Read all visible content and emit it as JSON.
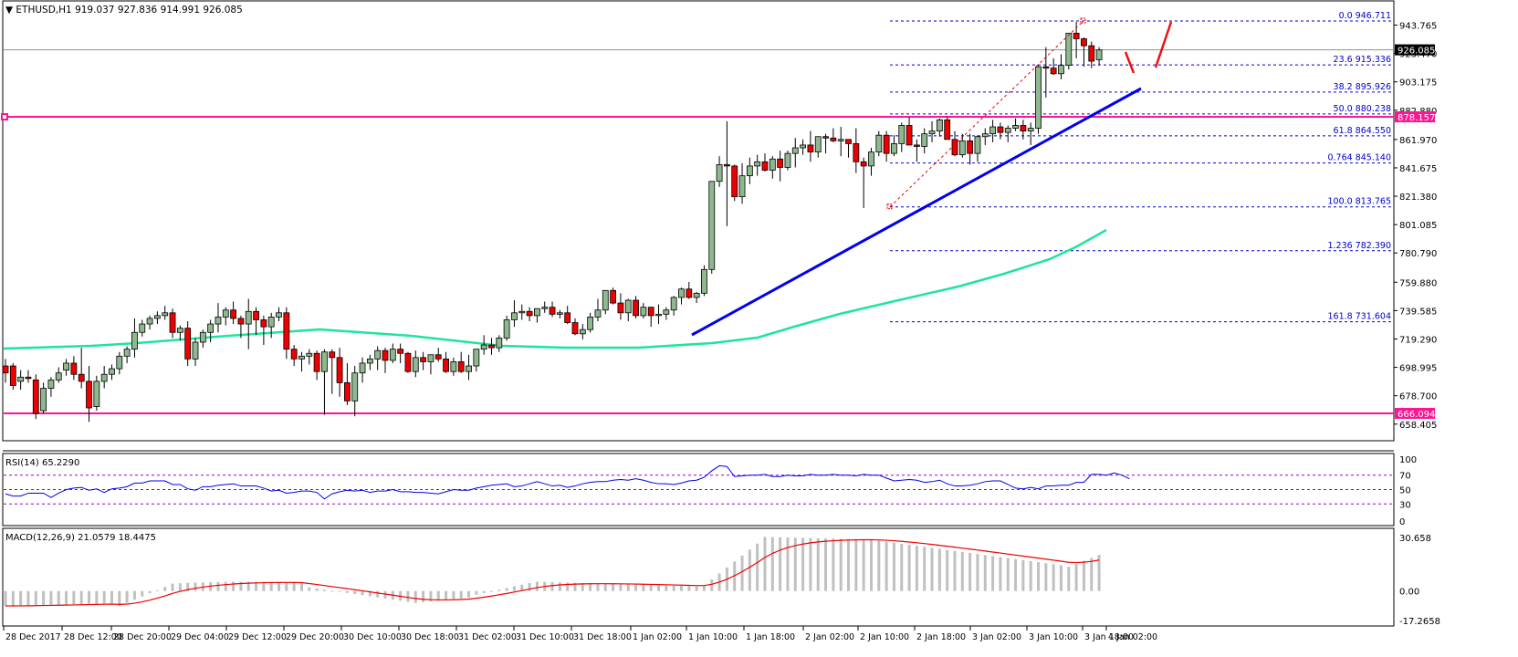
{
  "header": {
    "symbol_label": "ETHUSD,H1",
    "ohlc": "919.037 927.836 914.991 926.085",
    "full_title": "ETHUSD,H1  919.037 927.836 914.991 926.085"
  },
  "colors": {
    "bull_candle": "#8fb88f",
    "bear_candle": "#ee0000",
    "ma_line": "#1ee59a",
    "trendline": "#0000ee",
    "horizontal_levels": "#ff1493",
    "fib_lines": "#0000cc",
    "rsi_line": "#0000ee",
    "rsi_levels": "#9900cc",
    "macd_hist": "#c0c0c0",
    "macd_signal": "#ee0000",
    "current_price_bg": "#000000"
  },
  "rsi": {
    "title": "RSI(14) 65.2290",
    "levels": [
      70,
      50,
      30
    ],
    "axis": [
      "100",
      "70",
      "50",
      "30",
      "0"
    ]
  },
  "macd": {
    "title": "MACD(12,26,9) 21.0579 18.4475",
    "axis": [
      "30.658",
      "0.00",
      "-17.2658"
    ]
  },
  "chart_data": {
    "type": "candlestick",
    "title": "ETHUSD,H1",
    "ohlc_last": {
      "open": 919.037,
      "high": 927.836,
      "low": 914.991,
      "close": 926.085
    },
    "price_axis_ticks": [
      "943.765",
      "923.470",
      "903.175",
      "882.880",
      "861.970",
      "841.675",
      "821.380",
      "801.085",
      "780.790",
      "759.880",
      "739.585",
      "719.290",
      "698.995",
      "678.700",
      "658.405"
    ],
    "ylim": [
      654.0,
      964.0
    ],
    "current_price": "926.085",
    "horizontal_levels": [
      {
        "label": "878.157",
        "value": 878.157
      },
      {
        "label": "666.094",
        "value": 666.094
      }
    ],
    "fibonacci_levels": [
      {
        "label": "0.0  946.711",
        "value": 946.711
      },
      {
        "label": "23.6  915.336",
        "value": 915.336
      },
      {
        "label": "38.2  895.926",
        "value": 895.926
      },
      {
        "label": "50.0 880.238",
        "value": 880.238
      },
      {
        "label": "61.8  864.550",
        "value": 864.55
      },
      {
        "label": "0.764  845.140",
        "value": 845.14
      },
      {
        "label": "100.0  813.765",
        "value": 813.765
      },
      {
        "label": "1.236 782.390",
        "value": 782.39
      },
      {
        "label": "161.8  731.604",
        "value": 731.604
      }
    ],
    "x_axis_labels": [
      "28 Dec 2017",
      "28 Dec 12:00",
      "28 Dec 20:00",
      "29 Dec 04:00",
      "29 Dec 12:00",
      "29 Dec 20:00",
      "30 Dec 10:00",
      "30 Dec 18:00",
      "31 Dec 02:00",
      "31 Dec 10:00",
      "31 Dec 18:00",
      "1 Jan 02:00",
      "1 Jan 10:00",
      "1 Jan 18:00",
      "2 Jan 02:00",
      "2 Jan 10:00",
      "2 Jan 18:00",
      "3 Jan 02:00",
      "3 Jan 10:00",
      "3 Jan 18:00",
      "4 Jan 02:00"
    ],
    "trendline": {
      "from": {
        "x_label": "1 Jan 10:00",
        "price": 726
      },
      "to": {
        "x_label": "4 Jan 02:00",
        "price": 897
      }
    },
    "moving_average": {
      "start": 712,
      "end": 800
    },
    "rsi_last": 65.229,
    "macd_last": 21.0579,
    "macd_signal_last": 18.4475
  },
  "candles": [
    [
      700,
      705,
      688,
      695
    ],
    [
      700,
      702,
      683,
      686
    ],
    [
      689,
      697,
      683,
      692
    ],
    [
      692,
      697,
      688,
      691
    ],
    [
      690,
      694,
      662,
      666
    ],
    [
      668,
      688,
      666,
      684
    ],
    [
      684,
      692,
      678,
      690
    ],
    [
      690,
      699,
      688,
      695
    ],
    [
      697,
      705,
      693,
      702
    ],
    [
      702,
      707,
      690,
      694
    ],
    [
      694,
      713,
      684,
      689
    ],
    [
      689,
      700,
      660,
      670
    ],
    [
      671,
      693,
      668,
      689
    ],
    [
      689,
      700,
      684,
      694
    ],
    [
      694,
      701,
      690,
      698
    ],
    [
      698,
      710,
      694,
      707
    ],
    [
      707,
      714,
      702,
      712
    ],
    [
      712,
      734,
      706,
      724
    ],
    [
      724,
      733,
      721,
      730
    ],
    [
      730,
      736,
      726,
      734
    ],
    [
      734,
      739,
      730,
      736
    ],
    [
      736,
      743,
      733,
      738
    ],
    [
      738,
      741,
      720,
      724
    ],
    [
      724,
      729,
      718,
      727
    ],
    [
      727,
      732,
      700,
      705
    ],
    [
      705,
      720,
      700,
      717
    ],
    [
      717,
      726,
      713,
      724
    ],
    [
      724,
      733,
      717,
      730
    ],
    [
      730,
      745,
      724,
      735
    ],
    [
      735,
      742,
      729,
      740
    ],
    [
      740,
      746,
      730,
      734
    ],
    [
      734,
      736,
      720,
      730
    ],
    [
      730,
      748,
      712,
      739
    ],
    [
      739,
      742,
      722,
      733
    ],
    [
      733,
      736,
      715,
      728
    ],
    [
      728,
      738,
      720,
      735
    ],
    [
      735,
      742,
      732,
      738
    ],
    [
      738,
      742,
      705,
      712
    ],
    [
      712,
      715,
      700,
      705
    ],
    [
      705,
      710,
      696,
      707
    ],
    [
      707,
      712,
      701,
      709
    ],
    [
      709,
      711,
      690,
      696
    ],
    [
      696,
      712,
      665,
      710
    ],
    [
      710,
      712,
      680,
      706
    ],
    [
      706,
      713,
      678,
      688
    ],
    [
      688,
      702,
      672,
      675
    ],
    [
      675,
      700,
      664,
      695
    ],
    [
      695,
      706,
      688,
      702
    ],
    [
      702,
      708,
      697,
      705
    ],
    [
      705,
      714,
      697,
      711
    ],
    [
      711,
      713,
      695,
      704
    ],
    [
      704,
      716,
      702,
      712
    ],
    [
      712,
      716,
      702,
      709
    ],
    [
      709,
      710,
      695,
      696
    ],
    [
      696,
      711,
      692,
      706
    ],
    [
      706,
      710,
      697,
      703
    ],
    [
      703,
      708,
      694,
      708
    ],
    [
      708,
      713,
      703,
      705
    ],
    [
      705,
      710,
      695,
      696
    ],
    [
      696,
      706,
      693,
      703
    ],
    [
      703,
      710,
      695,
      696
    ],
    [
      696,
      708,
      690,
      700
    ],
    [
      700,
      712,
      696,
      712
    ],
    [
      712,
      722,
      708,
      715
    ],
    [
      715,
      720,
      708,
      713
    ],
    [
      713,
      722,
      710,
      720
    ],
    [
      720,
      736,
      718,
      733
    ],
    [
      733,
      747,
      728,
      738
    ],
    [
      738,
      744,
      733,
      739
    ],
    [
      739,
      742,
      732,
      736
    ],
    [
      736,
      741,
      731,
      741
    ],
    [
      741,
      746,
      738,
      742
    ],
    [
      742,
      746,
      735,
      737
    ],
    [
      737,
      740,
      734,
      738
    ],
    [
      738,
      743,
      730,
      731
    ],
    [
      731,
      734,
      722,
      723
    ],
    [
      723,
      730,
      719,
      726
    ],
    [
      726,
      738,
      724,
      735
    ],
    [
      735,
      748,
      732,
      740
    ],
    [
      740,
      752,
      737,
      754
    ],
    [
      754,
      756,
      744,
      745
    ],
    [
      745,
      752,
      733,
      738
    ],
    [
      738,
      748,
      732,
      747
    ],
    [
      747,
      750,
      734,
      736
    ],
    [
      736,
      745,
      734,
      742
    ],
    [
      742,
      742,
      728,
      736
    ],
    [
      736,
      744,
      730,
      737
    ],
    [
      737,
      742,
      733,
      740
    ],
    [
      740,
      750,
      736,
      749
    ],
    [
      749,
      756,
      744,
      755
    ],
    [
      755,
      760,
      748,
      749
    ],
    [
      749,
      753,
      745,
      752
    ],
    [
      752,
      772,
      750,
      769
    ],
    [
      769,
      830,
      766,
      832
    ],
    [
      832,
      850,
      828,
      844
    ],
    [
      844,
      875,
      800,
      843
    ],
    [
      843,
      844,
      818,
      821
    ],
    [
      821,
      845,
      816,
      836
    ],
    [
      836,
      849,
      830,
      843
    ],
    [
      843,
      851,
      836,
      846
    ],
    [
      846,
      852,
      839,
      840
    ],
    [
      840,
      850,
      834,
      848
    ],
    [
      848,
      854,
      832,
      842
    ],
    [
      842,
      854,
      840,
      852
    ],
    [
      852,
      863,
      842,
      856
    ],
    [
      856,
      862,
      851,
      858
    ],
    [
      858,
      868,
      846,
      853
    ],
    [
      853,
      864,
      849,
      864
    ],
    [
      864,
      866,
      852,
      863
    ],
    [
      863,
      870,
      860,
      861
    ],
    [
      861,
      871,
      850,
      862
    ],
    [
      862,
      860,
      849,
      859
    ],
    [
      859,
      870,
      838,
      846
    ],
    [
      846,
      849,
      813,
      843
    ],
    [
      843,
      856,
      836,
      853
    ],
    [
      853,
      868,
      850,
      865
    ],
    [
      865,
      868,
      846,
      852
    ],
    [
      852,
      865,
      850,
      859
    ],
    [
      859,
      874,
      853,
      872
    ],
    [
      872,
      878,
      860,
      858
    ],
    [
      858,
      862,
      846,
      857
    ],
    [
      857,
      870,
      852,
      866
    ],
    [
      866,
      875,
      860,
      868
    ],
    [
      868,
      877,
      864,
      876
    ],
    [
      876,
      878,
      862,
      862
    ],
    [
      862,
      868,
      850,
      851
    ],
    [
      851,
      866,
      849,
      861
    ],
    [
      861,
      866,
      844,
      852
    ],
    [
      852,
      865,
      846,
      864
    ],
    [
      864,
      870,
      858,
      866
    ],
    [
      866,
      876,
      860,
      871
    ],
    [
      871,
      874,
      862,
      867
    ],
    [
      867,
      872,
      860,
      870
    ],
    [
      870,
      877,
      868,
      872
    ],
    [
      872,
      876,
      862,
      868
    ],
    [
      868,
      874,
      858,
      870
    ],
    [
      870,
      915,
      866,
      914
    ],
    [
      914,
      928,
      892,
      913
    ],
    [
      913,
      920,
      908,
      909
    ],
    [
      909,
      923,
      905,
      915
    ],
    [
      915,
      934,
      912,
      938
    ],
    [
      938,
      946,
      920,
      934
    ],
    [
      934,
      935,
      914,
      929
    ],
    [
      929,
      932,
      913,
      918
    ],
    [
      919,
      928,
      915,
      926
    ]
  ],
  "rsi_values": [
    44,
    41,
    41,
    45,
    45,
    45,
    39,
    45,
    50,
    52,
    53,
    49,
    51,
    46,
    51,
    52,
    54,
    59,
    59,
    62,
    62,
    62,
    57,
    57,
    51,
    49,
    54,
    54,
    56,
    57,
    58,
    55,
    55,
    55,
    52,
    48,
    49,
    45,
    46,
    48,
    48,
    46,
    37,
    44,
    47,
    49,
    48,
    49,
    46,
    48,
    48,
    50,
    47,
    47,
    46,
    46,
    45,
    44,
    47,
    50,
    49,
    49,
    52,
    54,
    56,
    57,
    58,
    54,
    55,
    58,
    61,
    58,
    55,
    56,
    53,
    55,
    58,
    60,
    61,
    61,
    63,
    64,
    63,
    65,
    63,
    60,
    58,
    58,
    57,
    59,
    62,
    63,
    67,
    76,
    83,
    82,
    68,
    69,
    70,
    70,
    71,
    68,
    68,
    70,
    69,
    69,
    71,
    70,
    70,
    71,
    70,
    70,
    69,
    71,
    70,
    70,
    66,
    62,
    63,
    64,
    63,
    60,
    61,
    63,
    58,
    55,
    55,
    56,
    58,
    61,
    62,
    62,
    57,
    52,
    51,
    53,
    51,
    55,
    55,
    56,
    56,
    60,
    60,
    71,
    71,
    70,
    73,
    70,
    65
  ]
}
